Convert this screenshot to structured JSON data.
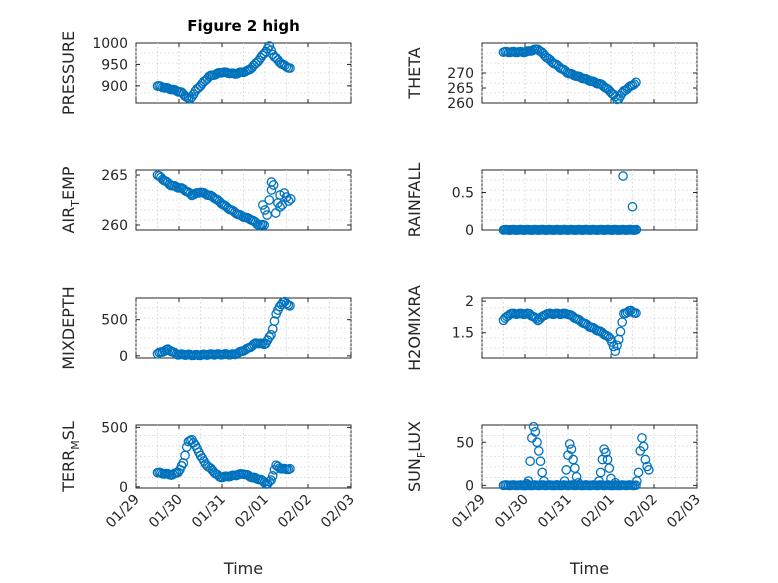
{
  "chart_data": [
    {
      "type": "scatter",
      "title": "Figure 2 high",
      "ylabel": "PRESSURE",
      "ylabel_sub": "",
      "ylim": [
        860,
        1000
      ],
      "yticks": [
        900,
        950,
        1000
      ],
      "x_start": 0.5,
      "x_end": 3.6,
      "x_step": 0.04,
      "knots": [
        [
          0.5,
          900
        ],
        [
          0.9,
          890
        ],
        [
          1.05,
          885
        ],
        [
          1.25,
          868
        ],
        [
          1.4,
          890
        ],
        [
          1.7,
          922
        ],
        [
          2.0,
          932
        ],
        [
          2.3,
          928
        ],
        [
          2.6,
          935
        ],
        [
          2.75,
          948
        ],
        [
          2.9,
          965
        ],
        [
          3.1,
          992
        ],
        [
          3.2,
          970
        ],
        [
          3.4,
          950
        ],
        [
          3.6,
          940
        ]
      ],
      "ymin_clip": 868,
      "ymax_clip": 1000
    },
    {
      "type": "scatter",
      "title": "",
      "ylabel": "THETA",
      "ylabel_sub": "",
      "ylim": [
        260,
        280
      ],
      "yticks": [
        260,
        265,
        270
      ],
      "x_start": 0.5,
      "x_end": 3.6,
      "x_step": 0.04,
      "knots": [
        [
          0.5,
          277
        ],
        [
          1.0,
          277
        ],
        [
          1.3,
          278
        ],
        [
          1.6,
          274
        ],
        [
          2.0,
          270
        ],
        [
          2.4,
          268
        ],
        [
          2.8,
          266
        ],
        [
          3.05,
          263
        ],
        [
          3.15,
          261
        ],
        [
          3.3,
          264
        ],
        [
          3.6,
          267
        ]
      ],
      "ymin_clip": 261,
      "ymax_clip": 278
    },
    {
      "type": "scatter",
      "title": "",
      "ylabel": "AIR",
      "ylabel_sub": "T",
      "ylabel_rest": "EMP",
      "ylim": [
        259.5,
        265.5
      ],
      "yticks": [
        260,
        265
      ],
      "x_start": 0.5,
      "x_end": 3.0,
      "x_step": 0.04,
      "knots": [
        [
          0.5,
          265
        ],
        [
          0.8,
          264
        ],
        [
          1.1,
          263.6
        ],
        [
          1.3,
          263
        ],
        [
          1.5,
          263.3
        ],
        [
          1.8,
          262.8
        ],
        [
          2.1,
          261.8
        ],
        [
          2.4,
          261
        ],
        [
          2.7,
          260.5
        ],
        [
          2.85,
          260
        ]
      ],
      "ymin_clip": 259.8,
      "ymax_clip": 265,
      "extra_points": [
        [
          2.95,
          262
        ],
        [
          3.0,
          261.5
        ],
        [
          3.05,
          261
        ],
        [
          3.1,
          262.5
        ],
        [
          3.15,
          263.5
        ],
        [
          3.2,
          264
        ],
        [
          3.25,
          261.2
        ],
        [
          3.3,
          262.2
        ],
        [
          3.35,
          263
        ],
        [
          3.4,
          262
        ],
        [
          3.45,
          263.2
        ],
        [
          3.5,
          262.8
        ],
        [
          3.55,
          262.4
        ],
        [
          3.6,
          262.6
        ],
        [
          3.15,
          264.3
        ],
        [
          3.35,
          261.8
        ]
      ]
    },
    {
      "type": "scatter",
      "title": "",
      "ylabel": "RAINFALL",
      "ylabel_sub": "",
      "ylim": [
        0,
        0.8
      ],
      "yticks": [
        0,
        0.5
      ],
      "x_start": 0.5,
      "x_end": 3.6,
      "x_step": 0.03,
      "knots": [
        [
          0.5,
          0
        ],
        [
          3.6,
          0
        ]
      ],
      "ymin_clip": 0,
      "ymax_clip": 1,
      "extra_points": [
        [
          3.28,
          0.72
        ],
        [
          3.5,
          0.31
        ]
      ]
    },
    {
      "type": "scatter",
      "title": "",
      "ylabel": "MIXDEPTH",
      "ylabel_sub": "",
      "ylim": [
        -30,
        800
      ],
      "yticks": [
        0,
        500
      ],
      "x_start": 0.5,
      "x_end": 3.6,
      "x_step": 0.04,
      "knots": [
        [
          0.5,
          30
        ],
        [
          0.75,
          90
        ],
        [
          0.95,
          20
        ],
        [
          1.4,
          10
        ],
        [
          1.8,
          20
        ],
        [
          2.3,
          20
        ],
        [
          2.6,
          100
        ],
        [
          2.8,
          180
        ],
        [
          3.0,
          160
        ],
        [
          3.15,
          300
        ],
        [
          3.25,
          560
        ],
        [
          3.35,
          700
        ],
        [
          3.45,
          750
        ],
        [
          3.6,
          680
        ]
      ],
      "ymin_clip": 0,
      "ymax_clip": 780
    },
    {
      "type": "scatter",
      "title": "",
      "ylabel": "H2OMIXRA",
      "ylabel_sub": "",
      "ylim": [
        1.1,
        2.05
      ],
      "yticks": [
        1.5,
        2
      ],
      "x_start": 0.5,
      "x_end": 3.6,
      "x_step": 0.04,
      "knots": [
        [
          0.5,
          1.7
        ],
        [
          0.65,
          1.8
        ],
        [
          1.1,
          1.8
        ],
        [
          1.3,
          1.7
        ],
        [
          1.5,
          1.8
        ],
        [
          2.0,
          1.8
        ],
        [
          2.25,
          1.7
        ],
        [
          2.5,
          1.6
        ],
        [
          2.8,
          1.5
        ],
        [
          3.0,
          1.4
        ],
        [
          3.1,
          1.2
        ],
        [
          3.2,
          1.45
        ],
        [
          3.3,
          1.8
        ],
        [
          3.45,
          1.85
        ],
        [
          3.6,
          1.8
        ]
      ],
      "ymin_clip": 1.2,
      "ymax_clip": 1.9
    },
    {
      "type": "scatter",
      "title": "",
      "ylabel": "TERR",
      "ylabel_sub": "M",
      "ylabel_rest": "SL",
      "ylim": [
        -10,
        520
      ],
      "yticks": [
        0,
        500
      ],
      "x_start": 0.5,
      "x_end": 3.6,
      "x_step": 0.04,
      "knots": [
        [
          0.5,
          120
        ],
        [
          0.85,
          100
        ],
        [
          1.0,
          130
        ],
        [
          1.1,
          200
        ],
        [
          1.2,
          370
        ],
        [
          1.3,
          400
        ],
        [
          1.45,
          300
        ],
        [
          1.6,
          200
        ],
        [
          1.8,
          130
        ],
        [
          1.95,
          80
        ],
        [
          2.2,
          90
        ],
        [
          2.5,
          110
        ],
        [
          2.7,
          80
        ],
        [
          2.9,
          60
        ],
        [
          3.05,
          20
        ],
        [
          3.15,
          60
        ],
        [
          3.25,
          180
        ],
        [
          3.4,
          150
        ],
        [
          3.6,
          150
        ]
      ],
      "ymin_clip": 0,
      "ymax_clip": 520
    },
    {
      "type": "scatter",
      "title": "",
      "ylabel": "SUN",
      "ylabel_sub": "F",
      "ylabel_rest": "LUX",
      "ylim": [
        -3,
        70
      ],
      "yticks": [
        0,
        50
      ],
      "x_start": 0.5,
      "x_end": 3.6,
      "x_step": 0.04,
      "knots": [
        [
          0.5,
          0
        ],
        [
          3.6,
          0
        ]
      ],
      "ymin_clip": 0,
      "ymax_clip": 70,
      "extra_points": [
        [
          1.0,
          0
        ],
        [
          1.04,
          2
        ],
        [
          1.08,
          5
        ],
        [
          1.12,
          28
        ],
        [
          1.16,
          55
        ],
        [
          1.2,
          68
        ],
        [
          1.24,
          62
        ],
        [
          1.28,
          50
        ],
        [
          1.32,
          40
        ],
        [
          1.36,
          28
        ],
        [
          1.4,
          15
        ],
        [
          1.44,
          5
        ],
        [
          1.92,
          5
        ],
        [
          1.96,
          18
        ],
        [
          2.0,
          35
        ],
        [
          2.04,
          48
        ],
        [
          2.08,
          42
        ],
        [
          2.12,
          30
        ],
        [
          2.16,
          20
        ],
        [
          2.2,
          10
        ],
        [
          2.24,
          3
        ],
        [
          2.72,
          5
        ],
        [
          2.76,
          15
        ],
        [
          2.8,
          30
        ],
        [
          2.84,
          42
        ],
        [
          2.88,
          38
        ],
        [
          2.92,
          30
        ],
        [
          2.96,
          20
        ],
        [
          3.0,
          8
        ],
        [
          3.1,
          3
        ],
        [
          3.6,
          5
        ],
        [
          3.64,
          15
        ],
        [
          3.68,
          40
        ],
        [
          3.72,
          55
        ],
        [
          3.76,
          45
        ],
        [
          3.8,
          30
        ],
        [
          3.84,
          22
        ],
        [
          3.88,
          18
        ]
      ]
    }
  ],
  "x_axis": {
    "ticks": [
      "01/29",
      "01/30",
      "01/31",
      "02/01",
      "02/02",
      "02/03"
    ],
    "tick_values": [
      0,
      1,
      2,
      3,
      4,
      5
    ],
    "label": "Time"
  }
}
